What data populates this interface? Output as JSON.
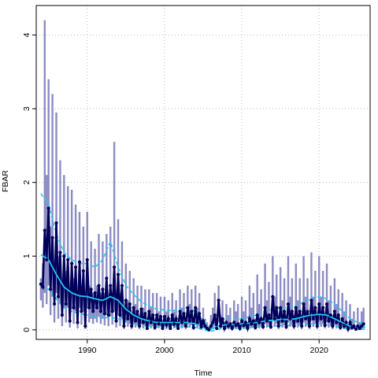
{
  "chart_data": {
    "type": "line",
    "title": "",
    "xlabel": "Time",
    "ylabel": "FBAR",
    "xlim": [
      1983.4,
      2026.6
    ],
    "ylim": [
      -0.13,
      4.4
    ],
    "x_ticks": [
      1990,
      2000,
      2010,
      2020
    ],
    "y_ticks": [
      0,
      1,
      2,
      3,
      4
    ],
    "grid": true,
    "legend": "none",
    "colors": {
      "band": "#8c8cc4",
      "seasonal": "#00005a",
      "smooth": "#20c8f0",
      "grid": "#bebebe",
      "frame": "#000000"
    },
    "series": [
      {
        "description_of_marks": "seasonal estimate with points (dark navy)",
        "x": [
          1984.0,
          1984.25,
          1984.5,
          1984.75,
          1985.0,
          1985.25,
          1985.5,
          1985.75,
          1986.0,
          1986.25,
          1986.5,
          1986.75,
          1987.0,
          1987.25,
          1987.5,
          1987.75,
          1988.0,
          1988.25,
          1988.5,
          1988.75,
          1989.0,
          1989.25,
          1989.5,
          1989.75,
          1990.0,
          1990.25,
          1990.5,
          1990.75,
          1991.0,
          1991.25,
          1991.5,
          1991.75,
          1992.0,
          1992.25,
          1992.5,
          1992.75,
          1993.0,
          1993.25,
          1993.5,
          1993.75,
          1994.0,
          1994.25,
          1994.5,
          1994.75,
          1995.0,
          1995.25,
          1995.5,
          1995.75,
          1996.0,
          1996.25,
          1996.5,
          1996.75,
          1997.0,
          1997.25,
          1997.5,
          1997.75,
          1998.0,
          1998.25,
          1998.5,
          1998.75,
          1999.0,
          1999.25,
          1999.5,
          1999.75,
          2000.0,
          2000.25,
          2000.5,
          2000.75,
          2001.0,
          2001.25,
          2001.5,
          2001.75,
          2002.0,
          2002.25,
          2002.5,
          2002.75,
          2003.0,
          2003.25,
          2003.5,
          2003.75,
          2004.0,
          2004.25,
          2004.5,
          2004.75,
          2005.0,
          2005.25,
          2005.5,
          2005.75,
          2006.0,
          2006.25,
          2006.5,
          2006.75,
          2007.0,
          2007.25,
          2007.5,
          2007.75,
          2008.0,
          2008.25,
          2008.5,
          2008.75,
          2009.0,
          2009.25,
          2009.5,
          2009.75,
          2010.0,
          2010.25,
          2010.5,
          2010.75,
          2011.0,
          2011.25,
          2011.5,
          2011.75,
          2012.0,
          2012.25,
          2012.5,
          2012.75,
          2013.0,
          2013.25,
          2013.5,
          2013.75,
          2014.0,
          2014.25,
          2014.5,
          2014.75,
          2015.0,
          2015.25,
          2015.5,
          2015.75,
          2016.0,
          2016.25,
          2016.5,
          2016.75,
          2017.0,
          2017.25,
          2017.5,
          2017.75,
          2018.0,
          2018.25,
          2018.5,
          2018.75,
          2019.0,
          2019.25,
          2019.5,
          2019.75,
          2020.0,
          2020.25,
          2020.5,
          2020.75,
          2021.0,
          2021.25,
          2021.5,
          2021.75,
          2022.0,
          2022.25,
          2022.5,
          2022.75,
          2023.0,
          2023.25,
          2023.5,
          2023.75,
          2024.0,
          2024.25,
          2024.5,
          2024.75,
          2025.0,
          2025.25,
          2025.5,
          2025.75
        ],
        "y": [
          0.62,
          0.58,
          1.35,
          0.95,
          1.65,
          0.55,
          1.25,
          0.35,
          1.45,
          0.45,
          1.05,
          0.2,
          1.0,
          0.35,
          0.95,
          0.12,
          0.9,
          0.3,
          0.85,
          0.1,
          0.92,
          0.25,
          0.8,
          0.05,
          0.95,
          0.3,
          0.55,
          0.25,
          0.5,
          0.3,
          0.6,
          0.25,
          0.55,
          0.22,
          0.7,
          0.2,
          0.6,
          0.25,
          0.85,
          0.12,
          0.75,
          0.2,
          0.6,
          0.05,
          0.4,
          0.15,
          0.35,
          0.05,
          0.3,
          0.12,
          0.25,
          0.05,
          0.28,
          0.1,
          0.22,
          0.02,
          0.25,
          0.1,
          0.2,
          0.03,
          0.2,
          0.08,
          0.18,
          0.02,
          0.18,
          0.07,
          0.15,
          0.02,
          0.2,
          0.08,
          0.15,
          0.02,
          0.25,
          0.1,
          0.22,
          0.05,
          0.3,
          0.12,
          0.25,
          0.03,
          0.3,
          0.1,
          0.22,
          0.04,
          0.12,
          0.05,
          0.02,
          0.0,
          0.05,
          0.1,
          0.2,
          0.02,
          0.4,
          0.05,
          0.15,
          0.02,
          0.1,
          0.05,
          0.08,
          0.02,
          0.1,
          0.06,
          0.08,
          0.02,
          0.12,
          0.06,
          0.1,
          0.02,
          0.15,
          0.08,
          0.12,
          0.03,
          0.2,
          0.1,
          0.15,
          0.04,
          0.3,
          0.12,
          0.2,
          0.04,
          0.45,
          0.15,
          0.3,
          0.05,
          0.3,
          0.12,
          0.25,
          0.04,
          0.35,
          0.15,
          0.25,
          0.05,
          0.3,
          0.12,
          0.25,
          0.05,
          0.35,
          0.15,
          0.25,
          0.05,
          0.4,
          0.15,
          0.3,
          0.05,
          0.35,
          0.15,
          0.3,
          0.06,
          0.35,
          0.12,
          0.2,
          0.05,
          0.25,
          0.1,
          0.2,
          0.03,
          0.15,
          0.05,
          0.1,
          0.01,
          0.1,
          0.03,
          0.05,
          0.01,
          0.05,
          0.02,
          0.05,
          0.08
        ]
      },
      {
        "description_of_marks": "smoothed trend (solid cyan)",
        "x": [
          1984,
          1985,
          1986,
          1987,
          1988,
          1989,
          1990,
          1991,
          1992,
          1993,
          1994,
          1995,
          1996,
          1997,
          1998,
          1999,
          2000,
          2001,
          2002,
          2003,
          2004,
          2005,
          2006,
          2007,
          2008,
          2009,
          2010,
          2011,
          2012,
          2013,
          2014,
          2015,
          2016,
          2017,
          2018,
          2019,
          2020,
          2021,
          2022,
          2023,
          2024,
          2025,
          2026
        ],
        "y": [
          1.02,
          0.95,
          0.75,
          0.58,
          0.5,
          0.46,
          0.45,
          0.42,
          0.4,
          0.45,
          0.4,
          0.28,
          0.2,
          0.15,
          0.12,
          0.1,
          0.1,
          0.1,
          0.1,
          0.1,
          0.08,
          0.03,
          0.01,
          0.05,
          0.07,
          0.07,
          0.08,
          0.09,
          0.1,
          0.12,
          0.13,
          0.14,
          0.14,
          0.15,
          0.18,
          0.2,
          0.21,
          0.2,
          0.15,
          0.1,
          0.05,
          0.03,
          0.04
        ]
      },
      {
        "description_of_marks": "smooth upper interval (dashed cyan)",
        "x": [
          1984,
          1985,
          1986,
          1987,
          1988,
          1989,
          1990,
          1991,
          1992,
          1993,
          1994,
          1995,
          1996,
          1997,
          1998,
          1999,
          2000,
          2001,
          2002,
          2003,
          2004,
          2005,
          2006,
          2007,
          2008,
          2009,
          2010,
          2011,
          2012,
          2013,
          2014,
          2015,
          2016,
          2017,
          2018,
          2019,
          2020,
          2021,
          2022,
          2023,
          2024,
          2025,
          2026
        ],
        "y": [
          1.85,
          1.7,
          1.3,
          1.05,
          0.95,
          0.9,
          0.9,
          0.85,
          0.95,
          1.2,
          0.85,
          0.6,
          0.48,
          0.38,
          0.32,
          0.28,
          0.27,
          0.26,
          0.28,
          0.3,
          0.25,
          0.12,
          0.05,
          0.12,
          0.15,
          0.14,
          0.15,
          0.18,
          0.2,
          0.25,
          0.28,
          0.3,
          0.3,
          0.32,
          0.38,
          0.43,
          0.45,
          0.42,
          0.35,
          0.25,
          0.15,
          0.1,
          0.1
        ]
      },
      {
        "description_of_marks": "smooth lower interval (dashed cyan)",
        "x": [
          1984,
          1985,
          1986,
          1987,
          1988,
          1989,
          1990,
          1991,
          1992,
          1993,
          1994,
          1995,
          1996,
          1997,
          1998,
          1999,
          2000,
          2001,
          2002,
          2003,
          2004,
          2005,
          2006,
          2007,
          2008,
          2009,
          2010,
          2011,
          2012,
          2013,
          2014,
          2015,
          2016,
          2017,
          2018,
          2019,
          2020,
          2021,
          2022,
          2023,
          2024,
          2025,
          2026
        ],
        "y": [
          0.6,
          0.55,
          0.42,
          0.3,
          0.25,
          0.22,
          0.2,
          0.18,
          0.16,
          0.17,
          0.15,
          0.12,
          0.08,
          0.06,
          0.05,
          0.04,
          0.04,
          0.04,
          0.04,
          0.04,
          0.03,
          0.0,
          -0.02,
          0.01,
          0.02,
          0.02,
          0.03,
          0.03,
          0.04,
          0.05,
          0.05,
          0.06,
          0.06,
          0.06,
          0.07,
          0.08,
          0.08,
          0.07,
          0.05,
          0.03,
          0.01,
          0.0,
          0.01
        ]
      }
    ],
    "interval_band": {
      "description_of_marks": "seasonal confidence bars (light purple)",
      "upper": [
        0.7,
        0.9,
        4.2,
        2.1,
        3.4,
        1.4,
        3.2,
        0.9,
        2.95,
        1.0,
        2.3,
        0.5,
        2.1,
        0.8,
        1.95,
        0.4,
        1.9,
        0.7,
        1.7,
        0.3,
        1.6,
        0.6,
        1.4,
        0.2,
        1.6,
        0.6,
        1.2,
        0.5,
        1.1,
        0.6,
        1.3,
        0.5,
        1.2,
        0.5,
        1.3,
        0.4,
        1.4,
        0.5,
        2.55,
        0.4,
        1.5,
        0.5,
        1.2,
        0.2,
        0.9,
        0.4,
        0.8,
        0.2,
        0.7,
        0.35,
        0.6,
        0.15,
        0.6,
        0.3,
        0.55,
        0.1,
        0.55,
        0.3,
        0.5,
        0.1,
        0.5,
        0.25,
        0.45,
        0.1,
        0.45,
        0.25,
        0.4,
        0.1,
        0.5,
        0.25,
        0.4,
        0.1,
        0.55,
        0.3,
        0.5,
        0.15,
        0.6,
        0.35,
        0.55,
        0.1,
        0.6,
        0.3,
        0.5,
        0.15,
        0.3,
        0.15,
        0.1,
        0.05,
        0.2,
        0.3,
        0.5,
        0.1,
        0.6,
        0.2,
        0.4,
        0.1,
        0.35,
        0.2,
        0.3,
        0.1,
        0.4,
        0.25,
        0.35,
        0.1,
        0.45,
        0.25,
        0.4,
        0.1,
        0.6,
        0.3,
        0.5,
        0.15,
        0.75,
        0.35,
        0.55,
        0.15,
        0.9,
        0.4,
        0.65,
        0.15,
        1.0,
        0.45,
        0.75,
        0.15,
        0.85,
        0.4,
        0.7,
        0.15,
        1.0,
        0.45,
        0.7,
        0.2,
        0.9,
        0.4,
        0.7,
        0.2,
        1.0,
        0.45,
        0.7,
        0.2,
        1.05,
        0.45,
        0.8,
        0.2,
        1.0,
        0.45,
        0.8,
        0.2,
        0.9,
        0.4,
        0.6,
        0.2,
        0.7,
        0.35,
        0.55,
        0.1,
        0.5,
        0.25,
        0.4,
        0.05,
        0.35,
        0.15,
        0.25,
        0.05,
        0.3,
        0.1,
        0.25,
        0.3
      ],
      "lower": [
        0.4,
        0.3,
        0.5,
        0.35,
        0.6,
        0.2,
        0.45,
        0.1,
        0.5,
        0.15,
        0.35,
        0.05,
        0.3,
        0.1,
        0.3,
        0.03,
        0.28,
        0.08,
        0.25,
        0.02,
        0.3,
        0.07,
        0.25,
        0.01,
        0.3,
        0.1,
        0.15,
        0.08,
        0.15,
        0.1,
        0.18,
        0.08,
        0.15,
        0.06,
        0.2,
        0.05,
        0.18,
        0.07,
        0.25,
        0.03,
        0.2,
        0.05,
        0.15,
        0.01,
        0.1,
        0.04,
        0.08,
        0.01,
        0.07,
        0.03,
        0.06,
        0.01,
        0.07,
        0.02,
        0.05,
        0.0,
        0.06,
        0.02,
        0.05,
        0.0,
        0.05,
        0.02,
        0.04,
        0.0,
        0.04,
        0.01,
        0.03,
        0.0,
        0.05,
        0.02,
        0.03,
        0.0,
        0.06,
        0.02,
        0.05,
        0.01,
        0.07,
        0.03,
        0.06,
        0.0,
        0.07,
        0.02,
        0.05,
        0.01,
        0.03,
        0.01,
        0.0,
        0.0,
        0.01,
        0.02,
        0.05,
        0.0,
        0.1,
        0.01,
        0.03,
        0.0,
        0.02,
        0.01,
        0.02,
        0.0,
        0.02,
        0.01,
        0.02,
        0.0,
        0.03,
        0.01,
        0.02,
        0.0,
        0.04,
        0.02,
        0.03,
        0.0,
        0.05,
        0.02,
        0.04,
        0.01,
        0.08,
        0.03,
        0.05,
        0.01,
        0.12,
        0.04,
        0.08,
        0.01,
        0.08,
        0.03,
        0.06,
        0.01,
        0.1,
        0.04,
        0.06,
        0.01,
        0.08,
        0.03,
        0.06,
        0.01,
        0.1,
        0.04,
        0.06,
        0.01,
        0.12,
        0.04,
        0.08,
        0.01,
        0.1,
        0.04,
        0.08,
        0.02,
        0.1,
        0.03,
        0.05,
        0.01,
        0.06,
        0.02,
        0.05,
        0.0,
        0.04,
        0.01,
        0.02,
        0.0,
        0.02,
        0.0,
        0.01,
        0.0,
        0.01,
        0.0,
        0.01,
        0.02
      ]
    }
  }
}
